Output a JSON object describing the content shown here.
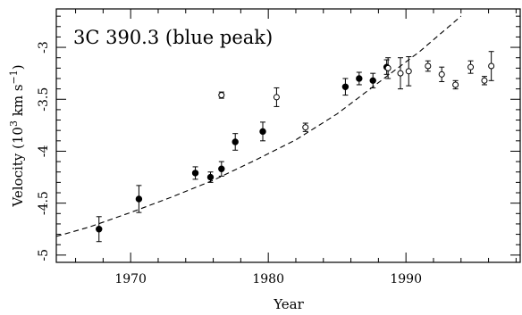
{
  "chart_data": {
    "type": "scatter",
    "title": "3C 390.3 (blue peak)",
    "xlabel": "Year",
    "ylabel_main": "Velocity (10",
    "ylabel_exp1": "3",
    "ylabel_mid": " km s",
    "ylabel_exp2": "−1",
    "ylabel_end": ")",
    "xlim": [
      1964.6,
      1998.3
    ],
    "ylim": [
      -5.07,
      -2.63
    ],
    "y_inverted": true,
    "grid": false,
    "x_ticks": [
      {
        "value": 1970,
        "label": "1970"
      },
      {
        "value": 1980,
        "label": "1980"
      },
      {
        "value": 1990,
        "label": "1990"
      }
    ],
    "y_ticks": [
      {
        "value": -3,
        "label": "-3"
      },
      {
        "value": -3.5,
        "label": "-3.5"
      },
      {
        "value": -4,
        "label": "-4"
      },
      {
        "value": -4.5,
        "label": "-4.5"
      },
      {
        "value": -5,
        "label": "-5"
      }
    ],
    "fit_curve": {
      "style": "dashed",
      "points": [
        [
          1964.6,
          -4.82
        ],
        [
          1967,
          -4.73
        ],
        [
          1970,
          -4.59
        ],
        [
          1973,
          -4.44
        ],
        [
          1976,
          -4.28
        ],
        [
          1979,
          -4.09
        ],
        [
          1982,
          -3.89
        ],
        [
          1985,
          -3.64
        ],
        [
          1988,
          -3.34
        ],
        [
          1991,
          -3.04
        ],
        [
          1994,
          -2.7
        ]
      ]
    },
    "series": [
      {
        "marker": "filled",
        "points": [
          {
            "x": 1967.7,
            "y": -4.75,
            "err": 0.12
          },
          {
            "x": 1970.6,
            "y": -4.46,
            "err": 0.13
          },
          {
            "x": 1974.7,
            "y": -4.21,
            "err": 0.06
          },
          {
            "x": 1975.8,
            "y": -4.25,
            "err": 0.05
          },
          {
            "x": 1976.6,
            "y": -4.17,
            "err": 0.07
          },
          {
            "x": 1977.6,
            "y": -3.91,
            "err": 0.08
          },
          {
            "x": 1979.6,
            "y": -3.81,
            "err": 0.09
          },
          {
            "x": 1985.6,
            "y": -3.38,
            "err": 0.08
          },
          {
            "x": 1986.6,
            "y": -3.3,
            "err": 0.06
          },
          {
            "x": 1987.6,
            "y": -3.32,
            "err": 0.07
          },
          {
            "x": 1988.6,
            "y": -3.19,
            "err": 0.07
          }
        ]
      },
      {
        "marker": "open",
        "points": [
          {
            "x": 1976.6,
            "y": -3.46,
            "err": 0.03
          },
          {
            "x": 1980.6,
            "y": -3.48,
            "err": 0.09
          },
          {
            "x": 1982.7,
            "y": -3.77,
            "err": 0.04
          },
          {
            "x": 1988.7,
            "y": -3.2,
            "err": 0.1
          },
          {
            "x": 1989.6,
            "y": -3.25,
            "err": 0.15
          },
          {
            "x": 1990.2,
            "y": -3.23,
            "err": 0.14
          },
          {
            "x": 1991.6,
            "y": -3.18,
            "err": 0.05
          },
          {
            "x": 1992.6,
            "y": -3.26,
            "err": 0.07
          },
          {
            "x": 1993.6,
            "y": -3.36,
            "err": 0.04
          },
          {
            "x": 1994.7,
            "y": -3.19,
            "err": 0.06
          },
          {
            "x": 1995.7,
            "y": -3.32,
            "err": 0.04
          },
          {
            "x": 1996.2,
            "y": -3.18,
            "err": 0.14
          }
        ]
      }
    ]
  }
}
